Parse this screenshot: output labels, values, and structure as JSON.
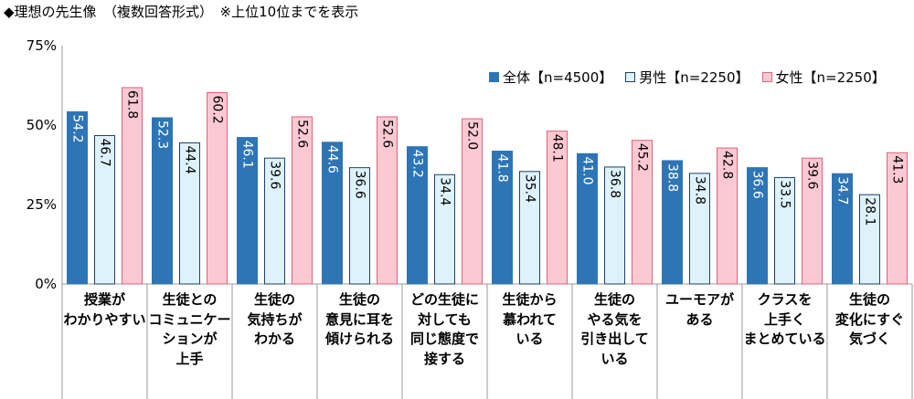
{
  "title": "◆理想の先生像　（複数回答形式）　※上位10位までを表示",
  "chart_data": {
    "type": "bar",
    "ylim": [
      0,
      75
    ],
    "yticks": [
      "0%",
      "25%",
      "50%",
      "75%"
    ],
    "ytick_values": [
      0,
      25,
      50,
      75
    ],
    "grid": false,
    "legend_placement": "top-right",
    "categories": [
      [
        "授業が",
        "わかりやすい"
      ],
      [
        "生徒との",
        "コミュニケー",
        "ションが",
        "上手"
      ],
      [
        "生徒の",
        "気持ちが",
        "わかる"
      ],
      [
        "生徒の",
        "意見に耳を",
        "傾けられる"
      ],
      [
        "どの生徒に",
        "対しても",
        "同じ態度で",
        "接する"
      ],
      [
        "生徒から",
        "慕われて",
        "いる"
      ],
      [
        "生徒の",
        "やる気を",
        "引き出して",
        "いる"
      ],
      [
        "ユーモアが",
        "ある"
      ],
      [
        "クラスを",
        "上手く",
        "まとめている"
      ],
      [
        "生徒の",
        "変化にすぐ",
        "気づく"
      ]
    ],
    "series": [
      {
        "name": "全体【n=4500】",
        "color": "#2e75b6",
        "stroke": "#2e75b6",
        "label_color": "#ffffff",
        "values": [
          54.2,
          52.3,
          46.1,
          44.6,
          43.2,
          41.8,
          41.0,
          38.8,
          36.6,
          34.7
        ]
      },
      {
        "name": "男性【n=2250】",
        "color": "#ddf2fb",
        "stroke": "#1f3f66",
        "label_color": "#000000",
        "values": [
          46.7,
          44.4,
          39.6,
          36.6,
          34.4,
          35.4,
          36.8,
          34.8,
          33.5,
          28.1
        ]
      },
      {
        "name": "女性【n=2250】",
        "color": "#fcc9d3",
        "stroke": "#d9667c",
        "label_color": "#000000",
        "values": [
          61.8,
          60.2,
          52.6,
          52.6,
          52.0,
          48.1,
          45.2,
          42.8,
          39.6,
          41.3
        ]
      }
    ]
  }
}
